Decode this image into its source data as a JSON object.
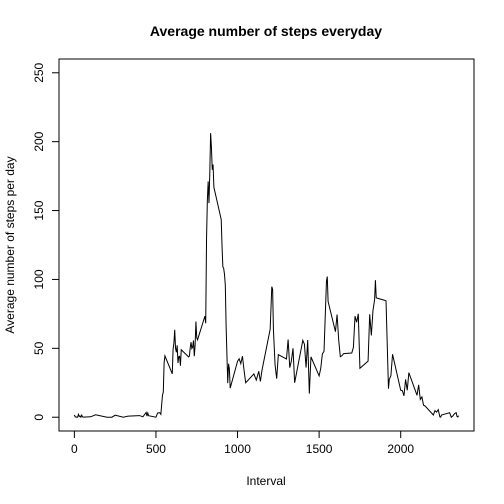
{
  "chart_data": {
    "type": "line",
    "title": "Average number of steps everyday",
    "x_label": "Interval",
    "y_label": "Average number of steps per day",
    "x": [
      0,
      5,
      10,
      15,
      20,
      25,
      30,
      35,
      40,
      45,
      50,
      55,
      100,
      130,
      200,
      230,
      250,
      300,
      330,
      400,
      420,
      440,
      445,
      450,
      455,
      500,
      510,
      520,
      525,
      530,
      540,
      545,
      550,
      555,
      600,
      605,
      610,
      615,
      620,
      625,
      630,
      635,
      640,
      645,
      650,
      655,
      700,
      705,
      710,
      715,
      720,
      725,
      730,
      735,
      740,
      745,
      750,
      755,
      800,
      805,
      810,
      815,
      820,
      825,
      830,
      835,
      840,
      845,
      850,
      855,
      900,
      905,
      910,
      915,
      920,
      925,
      930,
      935,
      940,
      945,
      950,
      955,
      1000,
      1010,
      1020,
      1030,
      1040,
      1050,
      1100,
      1115,
      1130,
      1140,
      1150,
      1200,
      1210,
      1215,
      1220,
      1230,
      1240,
      1250,
      1300,
      1310,
      1320,
      1330,
      1340,
      1350,
      1400,
      1410,
      1420,
      1430,
      1440,
      1450,
      1500,
      1510,
      1520,
      1530,
      1545,
      1550,
      1555,
      1600,
      1610,
      1620,
      1630,
      1640,
      1650,
      1700,
      1710,
      1720,
      1730,
      1740,
      1750,
      1800,
      1810,
      1820,
      1830,
      1840,
      1845,
      1850,
      1900,
      1910,
      1925,
      1930,
      1940,
      1950,
      2000,
      2010,
      2020,
      2030,
      2040,
      2050,
      2100,
      2110,
      2120,
      2130,
      2140,
      2150,
      2200,
      2210,
      2220,
      2230,
      2240,
      2245,
      2250,
      2300,
      2310,
      2320,
      2330,
      2340,
      2345,
      2350,
      2355
    ],
    "series": [
      {
        "name": "steps",
        "color": "#000000",
        "values": [
          1.7,
          0.3,
          0.1,
          0.2,
          0.1,
          2.1,
          0.5,
          0.9,
          0,
          1.5,
          0.3,
          0.1,
          0.3,
          1.8,
          0,
          0,
          1.5,
          0,
          0.8,
          1.2,
          0.3,
          3.5,
          0.8,
          3.1,
          1.1,
          0,
          3,
          3.3,
          3,
          2.1,
          16,
          18.3,
          39.5,
          44.5,
          31.5,
          49.3,
          53.8,
          63.5,
          50,
          47.1,
          52.2,
          39.3,
          44,
          44.2,
          37.4,
          49,
          43.8,
          44.4,
          50.5,
          54.5,
          49.9,
          51,
          55.7,
          44.3,
          52.3,
          69.5,
          57.8,
          56.2,
          73.4,
          68.2,
          129.4,
          157.5,
          171.2,
          155.4,
          177.3,
          206.2,
          195.9,
          179.6,
          183.4,
          167,
          143.5,
          124,
          109.1,
          108.1,
          103.7,
          96,
          66.2,
          45.2,
          24.8,
          38.8,
          35,
          21.1,
          40.6,
          42.4,
          38.9,
          44.3,
          34,
          25,
          31.4,
          27,
          33.4,
          26,
          34.2,
          63.9,
          94.8,
          92.8,
          63.4,
          38,
          28,
          45.4,
          42.3,
          56.4,
          36,
          40.9,
          50,
          25,
          55.8,
          53,
          36,
          56,
          17.1,
          43.8,
          30,
          35.5,
          46,
          47.8,
          98.7,
          102.1,
          84,
          62.1,
          74.5,
          56,
          43.9,
          44.7,
          46.2,
          46.6,
          50.7,
          73.4,
          68.9,
          75.1,
          35.5,
          40.7,
          74.7,
          59.3,
          77.4,
          85.3,
          99.5,
          86.6,
          84.9,
          84.5,
          20.7,
          27.4,
          30.2,
          45.7,
          19.6,
          19.3,
          15.5,
          27.5,
          19.5,
          32.3,
          15.9,
          23.5,
          12.9,
          14.7,
          8.7,
          8.1,
          1.6,
          4.8,
          3.7,
          5.5,
          0.3,
          0.1,
          1.6,
          3.3,
          0,
          1,
          2.6,
          3.3,
          0.6,
          0.2,
          1.1
        ]
      }
    ],
    "xlim": [
      -94.2,
      2449.2
    ],
    "xticks": [
      0,
      500,
      1000,
      1500,
      2000
    ],
    "ylim": [
      -10,
      260
    ],
    "yticks": [
      0,
      50,
      100,
      150,
      200,
      250
    ]
  }
}
